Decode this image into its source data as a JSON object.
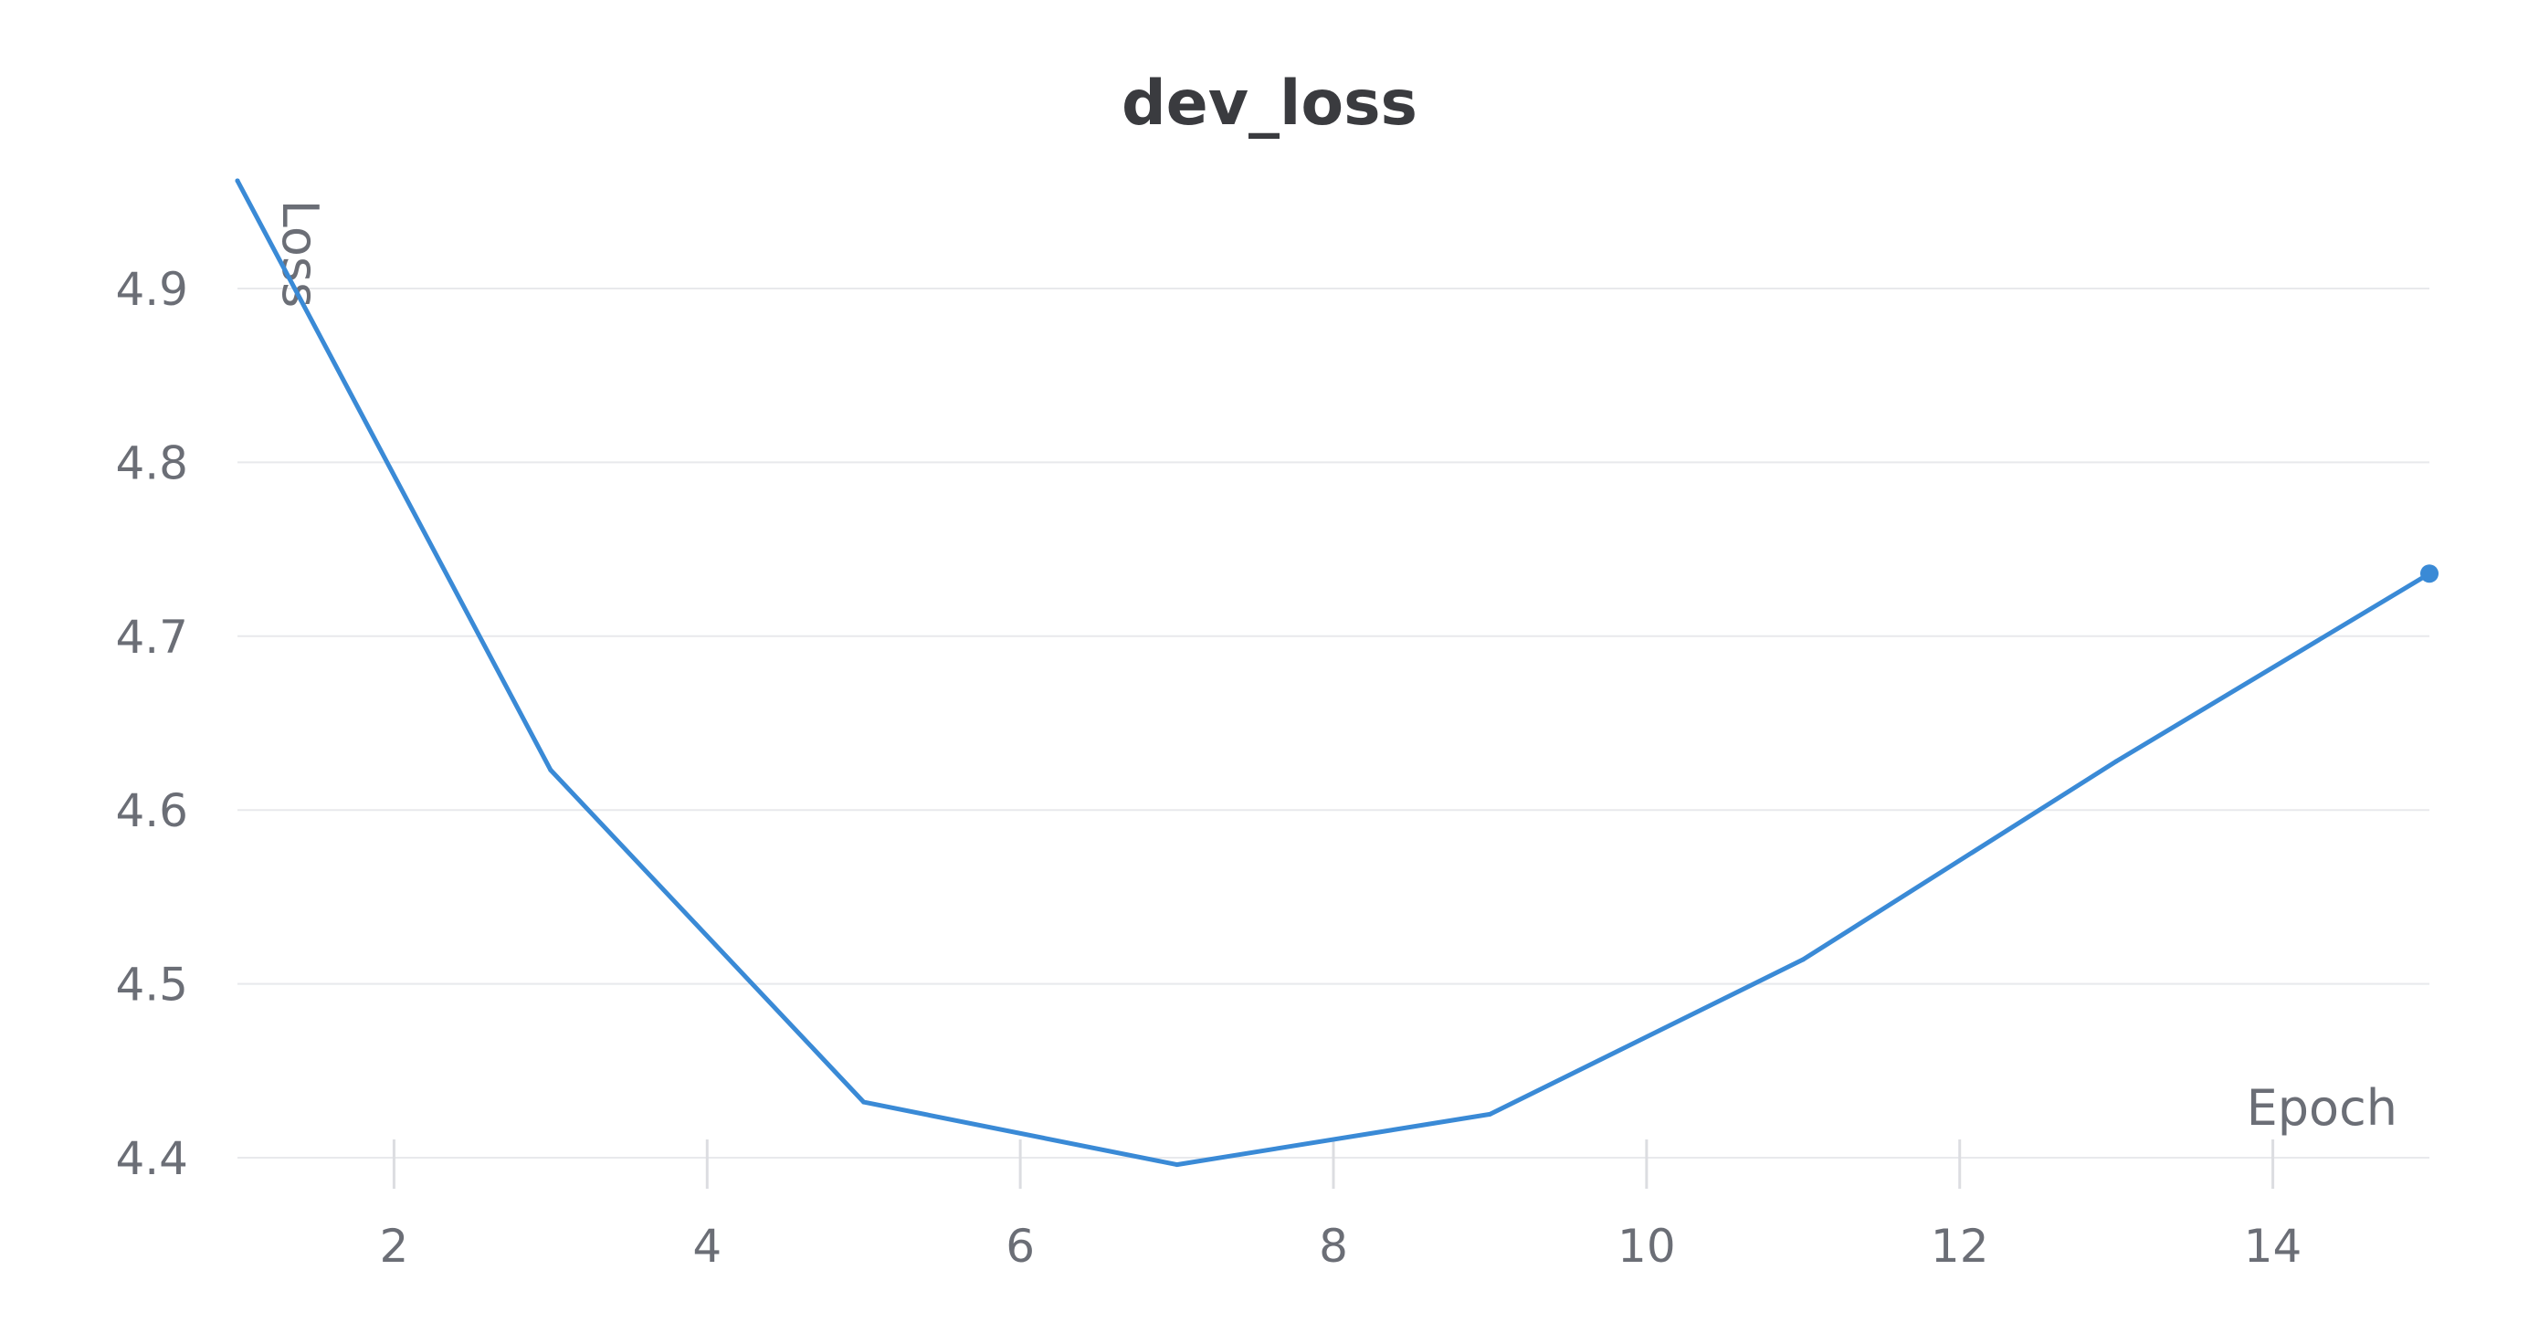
{
  "chart_data": {
    "type": "line",
    "title": "dev_loss",
    "xlabel": "Epoch",
    "ylabel": "Loss",
    "xlim": [
      1,
      15
    ],
    "ylim": [
      4.4,
      4.96
    ],
    "x_ticks": [
      2,
      4,
      6,
      8,
      10,
      12,
      14
    ],
    "y_ticks": [
      4.4,
      4.5,
      4.6,
      4.7,
      4.8,
      4.9
    ],
    "x_tick_labels": [
      "2",
      "4",
      "6",
      "8",
      "10",
      "12",
      "14"
    ],
    "y_tick_labels": [
      "4.4",
      "4.5",
      "4.6",
      "4.7",
      "4.8",
      "4.9"
    ],
    "grid": "horizontal",
    "series": [
      {
        "color": "#3a8ad6",
        "x": [
          1,
          3,
          5,
          7,
          9,
          11,
          13,
          15
        ],
        "y": [
          4.962,
          4.623,
          4.432,
          4.396,
          4.425,
          4.514,
          4.628,
          4.736
        ]
      }
    ]
  }
}
